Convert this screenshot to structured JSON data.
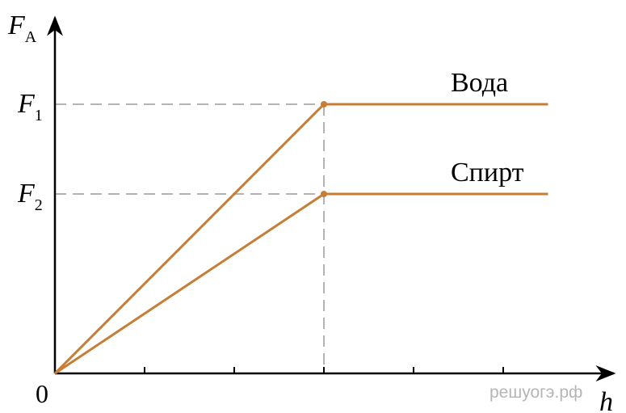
{
  "chart_data": {
    "type": "line",
    "title": "",
    "xlabel": "h",
    "ylabel": "F",
    "ylabel_sub": "A",
    "origin_label": "0",
    "x_ticks": [
      1,
      2,
      3,
      4,
      5
    ],
    "xlim": [
      0,
      6.3
    ],
    "ylim": [
      0,
      3.0
    ],
    "y_ticks": [
      {
        "value": 3,
        "label": "F",
        "sub": "1"
      },
      {
        "value": 2,
        "label": "F",
        "sub": "2"
      }
    ],
    "series": [
      {
        "name": "Вода",
        "color": "#c87d32",
        "points": [
          [
            0,
            0
          ],
          [
            3,
            3
          ],
          [
            5.5,
            3
          ]
        ],
        "marker_at": [
          3,
          3
        ]
      },
      {
        "name": "Спирт",
        "color": "#c87d32",
        "points": [
          [
            0,
            0
          ],
          [
            3,
            2
          ],
          [
            5.5,
            2
          ]
        ],
        "marker_at": [
          3,
          2
        ]
      }
    ],
    "guides": {
      "dashed": true,
      "color": "#b3b3b3"
    },
    "watermark": "решуогэ.рф"
  }
}
